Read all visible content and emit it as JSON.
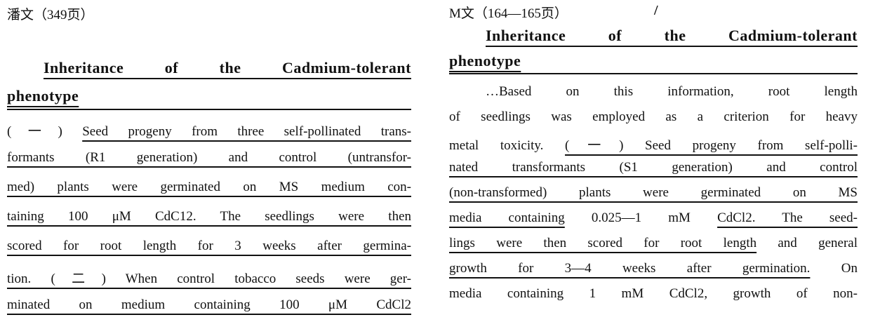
{
  "left": {
    "header": "潘文（349页）",
    "title_line1": "Inheritance of the Cadmium-tolerant",
    "title_line2": "phenotype",
    "lines": [
      [
        {
          "t": "(一) ",
          "u": false
        },
        {
          "t": "Seed progeny from three self-pollinated trans-",
          "u": true
        }
      ],
      [
        {
          "t": "formants (R1 generation) and control (untransfor-",
          "u": true
        }
      ],
      [
        {
          "t": "med) plants were germinated on MS medium con-",
          "u": true
        }
      ],
      [
        {
          "t": "taining 100 μM CdC12. The seedlings were then",
          "u": true
        }
      ],
      [
        {
          "t": "scored for root length for 3 weeks after germina-",
          "u": true
        }
      ],
      [
        {
          "t": "tion. (二) When control tobacco seeds were ger-",
          "u": true
        }
      ],
      [
        {
          "t": "minated on medium containing 100 μM CdCl2",
          "u": true
        }
      ]
    ]
  },
  "right": {
    "header": "M文（164—165页）",
    "mark": "/",
    "title_line1": "Inheritance of the Cadmium-tolerant",
    "title_line2": "phenotype",
    "lines": [
      [
        {
          "t": "…Based on this information, root length",
          "u": false
        }
      ],
      [
        {
          "t": "of seedlings was employed as a criterion for heavy",
          "u": false
        }
      ],
      [
        {
          "t": "metal toxicity. ",
          "u": false
        },
        {
          "t": "(一) Seed progeny from self-polli-",
          "u": true
        }
      ],
      [
        {
          "t": "nated transformants (S1 generation) and control",
          "u": true
        }
      ],
      [
        {
          "t": "(non-transformed) plants were germinated on MS",
          "u": true
        }
      ],
      [
        {
          "t": "media containing",
          "u": true
        },
        {
          "t": " 0.025—1 mM ",
          "u": false
        },
        {
          "t": "CdCl2. The seed-",
          "u": true
        }
      ],
      [
        {
          "t": "lings were then scored for root length",
          "u": true
        },
        {
          "t": " and general",
          "u": false
        }
      ],
      [
        {
          "t": "growth for 3—4 weeks after germination.",
          "u": true
        },
        {
          "t": " On",
          "u": false
        }
      ],
      [
        {
          "t": "media containing 1 mM CdCl2, growth of non-",
          "u": false
        }
      ]
    ]
  }
}
